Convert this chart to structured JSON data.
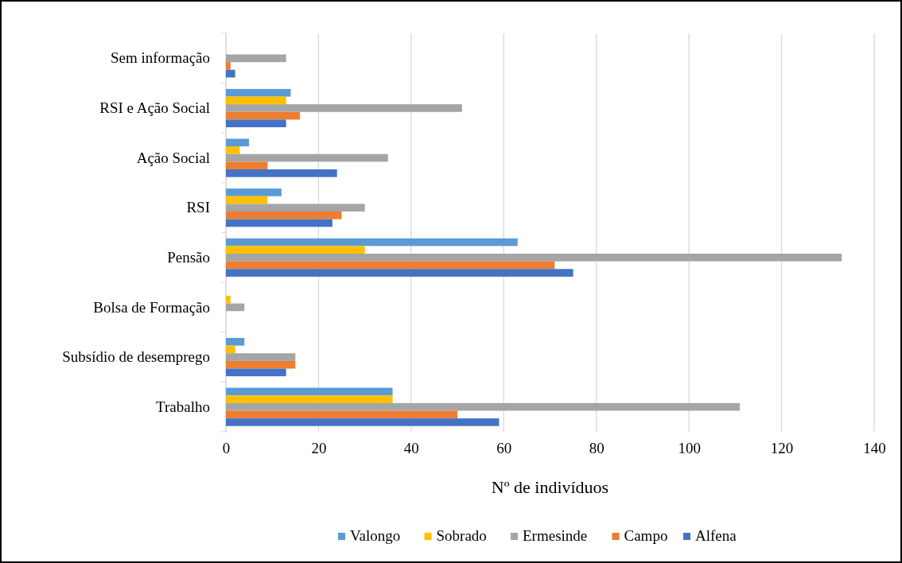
{
  "chart_data": {
    "type": "bar",
    "orientation": "horizontal",
    "xlabel": "Nº de indivíduos",
    "categories": [
      "Sem informação",
      "RSI e Ação Social",
      "Ação Social",
      "RSI",
      "Pensão",
      "Bolsa de Formação",
      "Subsídio de desemprego",
      "Trabalho"
    ],
    "series": [
      {
        "name": "Valongo",
        "color": "#5b9bd5",
        "values": [
          0,
          14,
          5,
          12,
          63,
          0,
          4,
          36
        ]
      },
      {
        "name": "Sobrado",
        "color": "#ffc000",
        "values": [
          0,
          13,
          3,
          9,
          30,
          1,
          2,
          36
        ]
      },
      {
        "name": "Ermesinde",
        "color": "#a5a5a5",
        "values": [
          13,
          51,
          35,
          30,
          133,
          4,
          15,
          111
        ]
      },
      {
        "name": "Campo",
        "color": "#ed7d31",
        "values": [
          1,
          16,
          9,
          25,
          71,
          0,
          15,
          50
        ]
      },
      {
        "name": "Alfena",
        "color": "#4472c4",
        "values": [
          2,
          13,
          24,
          23,
          75,
          0,
          13,
          59
        ]
      }
    ],
    "xlim": [
      0,
      140
    ],
    "xticks": [
      0,
      20,
      40,
      60,
      80,
      100,
      120,
      140
    ],
    "grid": "x",
    "legend": "bottom"
  }
}
